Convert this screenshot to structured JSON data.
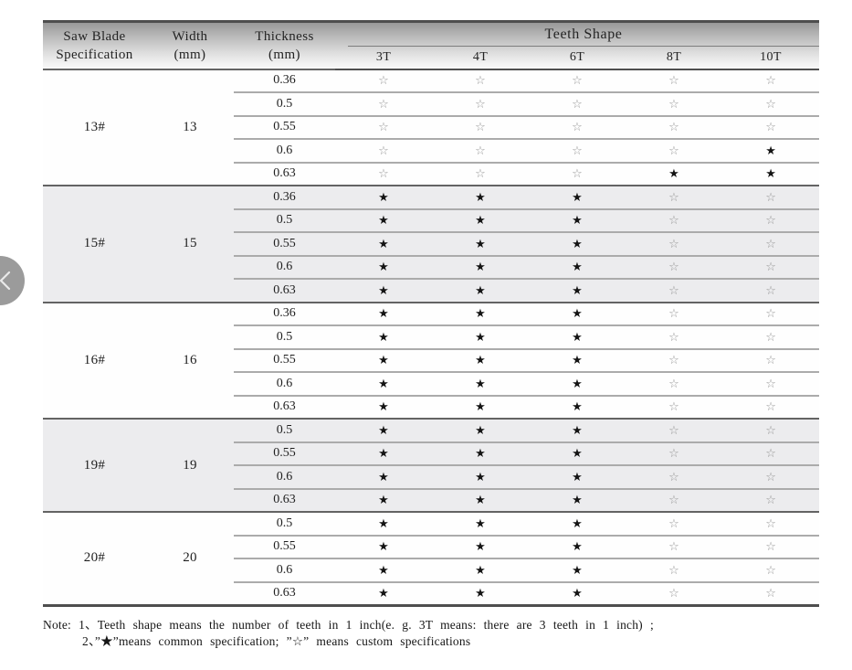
{
  "nav": {
    "prev_icon_name": "chevron-left"
  },
  "table": {
    "headers": {
      "spec": [
        "Saw Blade",
        "Specification"
      ],
      "width": [
        "Width",
        "(mm)"
      ],
      "thickness": [
        "Thickness",
        "(mm)"
      ],
      "teeth_shape": "Teeth Shape",
      "teeth_cols": [
        "3T",
        "4T",
        "6T",
        "8T",
        "10T"
      ]
    },
    "legend": {
      "common": "★",
      "custom": "☆"
    },
    "groups": [
      {
        "spec": "13#",
        "width": "13",
        "shaded": false,
        "rows": [
          {
            "thickness": "0.36",
            "marks": [
              "custom",
              "custom",
              "custom",
              "custom",
              "custom"
            ]
          },
          {
            "thickness": "0.5",
            "marks": [
              "custom",
              "custom",
              "custom",
              "custom",
              "custom"
            ]
          },
          {
            "thickness": "0.55",
            "marks": [
              "custom",
              "custom",
              "custom",
              "custom",
              "custom"
            ]
          },
          {
            "thickness": "0.6",
            "marks": [
              "custom",
              "custom",
              "custom",
              "custom",
              "common"
            ]
          },
          {
            "thickness": "0.63",
            "marks": [
              "custom",
              "custom",
              "custom",
              "common",
              "common"
            ]
          }
        ]
      },
      {
        "spec": "15#",
        "width": "15",
        "shaded": true,
        "rows": [
          {
            "thickness": "0.36",
            "marks": [
              "common",
              "common",
              "common",
              "custom",
              "custom"
            ]
          },
          {
            "thickness": "0.5",
            "marks": [
              "common",
              "common",
              "common",
              "custom",
              "custom"
            ]
          },
          {
            "thickness": "0.55",
            "marks": [
              "common",
              "common",
              "common",
              "custom",
              "custom"
            ]
          },
          {
            "thickness": "0.6",
            "marks": [
              "common",
              "common",
              "common",
              "custom",
              "custom"
            ]
          },
          {
            "thickness": "0.63",
            "marks": [
              "common",
              "common",
              "common",
              "custom",
              "custom"
            ]
          }
        ]
      },
      {
        "spec": "16#",
        "width": "16",
        "shaded": false,
        "rows": [
          {
            "thickness": "0.36",
            "marks": [
              "common",
              "common",
              "common",
              "custom",
              "custom"
            ]
          },
          {
            "thickness": "0.5",
            "marks": [
              "common",
              "common",
              "common",
              "custom",
              "custom"
            ]
          },
          {
            "thickness": "0.55",
            "marks": [
              "common",
              "common",
              "common",
              "custom",
              "custom"
            ]
          },
          {
            "thickness": "0.6",
            "marks": [
              "common",
              "common",
              "common",
              "custom",
              "custom"
            ]
          },
          {
            "thickness": "0.63",
            "marks": [
              "common",
              "common",
              "common",
              "custom",
              "custom"
            ]
          }
        ]
      },
      {
        "spec": "19#",
        "width": "19",
        "shaded": true,
        "rows": [
          {
            "thickness": "0.5",
            "marks": [
              "common",
              "common",
              "common",
              "custom",
              "custom"
            ]
          },
          {
            "thickness": "0.55",
            "marks": [
              "common",
              "common",
              "common",
              "custom",
              "custom"
            ]
          },
          {
            "thickness": "0.6",
            "marks": [
              "common",
              "common",
              "common",
              "custom",
              "custom"
            ]
          },
          {
            "thickness": "0.63",
            "marks": [
              "common",
              "common",
              "common",
              "custom",
              "custom"
            ]
          }
        ]
      },
      {
        "spec": "20#",
        "width": "20",
        "shaded": false,
        "rows": [
          {
            "thickness": "0.5",
            "marks": [
              "common",
              "common",
              "common",
              "custom",
              "custom"
            ]
          },
          {
            "thickness": "0.55",
            "marks": [
              "common",
              "common",
              "common",
              "custom",
              "custom"
            ]
          },
          {
            "thickness": "0.6",
            "marks": [
              "common",
              "common",
              "common",
              "custom",
              "custom"
            ]
          },
          {
            "thickness": "0.63",
            "marks": [
              "common",
              "common",
              "common",
              "custom",
              "custom"
            ]
          }
        ]
      }
    ]
  },
  "note": {
    "line1": "Note: 1、Teeth shape means the number of teeth in 1 inch(e. g. 3T  means: there are 3 teeth in 1 inch) ;",
    "line2": "2、”★”means common specification; ”☆” means custom specifications"
  },
  "colors": {
    "header_gradient_top": "#969696",
    "header_gradient_bottom": "#f9f9f9",
    "shaded_row_bg": "#ececee",
    "common_star": "#141414",
    "custom_star": "#979797",
    "group_divider": "#636363",
    "row_divider": "#ababab",
    "table_frame": "#4e4e4e",
    "nav_circle": "#9b9b9b"
  }
}
